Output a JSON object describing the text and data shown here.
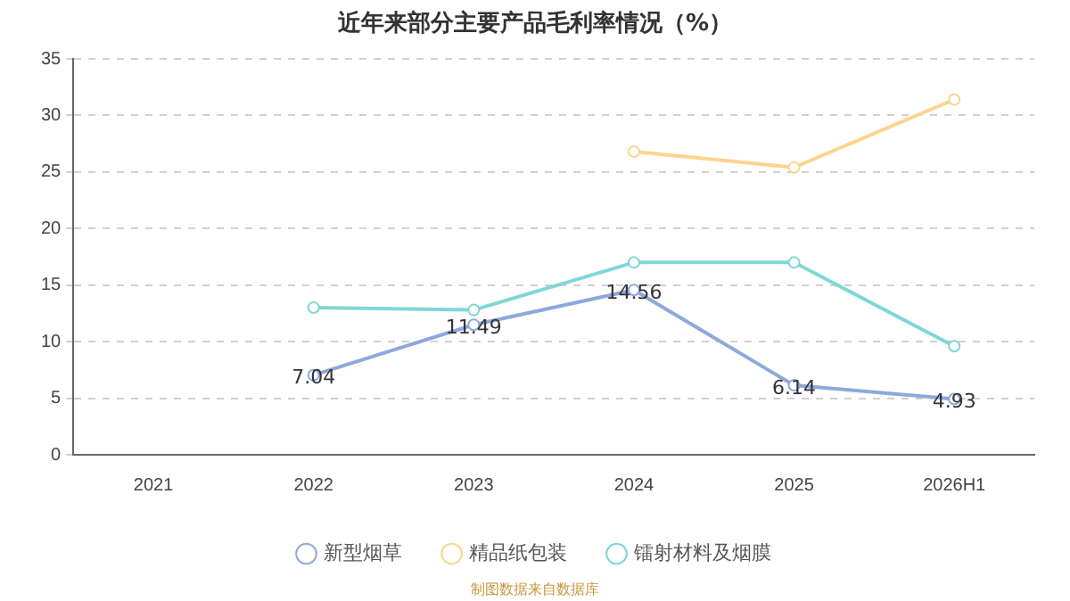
{
  "chart_data": {
    "type": "line",
    "title": "近年来部分主要产品毛利率情况（%）",
    "categories": [
      "2021",
      "2022",
      "2023",
      "2024",
      "2025",
      "2026H1"
    ],
    "series": [
      {
        "name": "新型烟草",
        "color": "#8ea8dc",
        "values": [
          null,
          7.04,
          11.49,
          14.56,
          6.14,
          4.93
        ],
        "value_labels": [
          null,
          "7.04",
          "11.49",
          "14.56",
          "6.14",
          "4.93"
        ]
      },
      {
        "name": "精品纸包装",
        "color": "#fdd48e",
        "values": [
          null,
          null,
          null,
          26.8,
          25.4,
          31.4
        ]
      },
      {
        "name": "镭射材料及烟膜",
        "color": "#7fd6d6",
        "values": [
          null,
          13.0,
          12.8,
          17.0,
          17.0,
          9.6
        ]
      }
    ],
    "ylim": [
      0,
      35
    ],
    "yticks": [
      0,
      5,
      10,
      15,
      20,
      25,
      30,
      35
    ],
    "grid": "y",
    "legend": "bottom",
    "marker": "circle",
    "line_style": "solid",
    "annotations": [
      "制图数据来自数据库"
    ]
  }
}
